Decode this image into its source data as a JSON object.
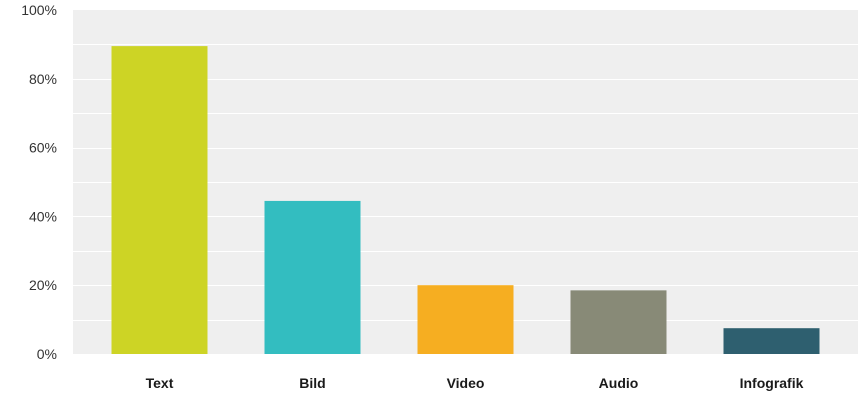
{
  "chart_data": {
    "type": "bar",
    "categories": [
      "Text",
      "Bild",
      "Video",
      "Audio",
      "Infografik"
    ],
    "values": [
      89.5,
      44.5,
      20,
      18.5,
      7.5
    ],
    "colors": [
      "#cdd425",
      "#33bdc0",
      "#f6ae21",
      "#888a77",
      "#2e5f6f"
    ],
    "ylim": [
      0,
      100
    ],
    "yticks": [
      0,
      20,
      40,
      60,
      80,
      100
    ],
    "ytick_labels": [
      "0%",
      "20%",
      "40%",
      "60%",
      "80%",
      "100%"
    ],
    "grid": true,
    "title": "",
    "xlabel": "",
    "ylabel": "",
    "plot_background": "#efefef"
  }
}
